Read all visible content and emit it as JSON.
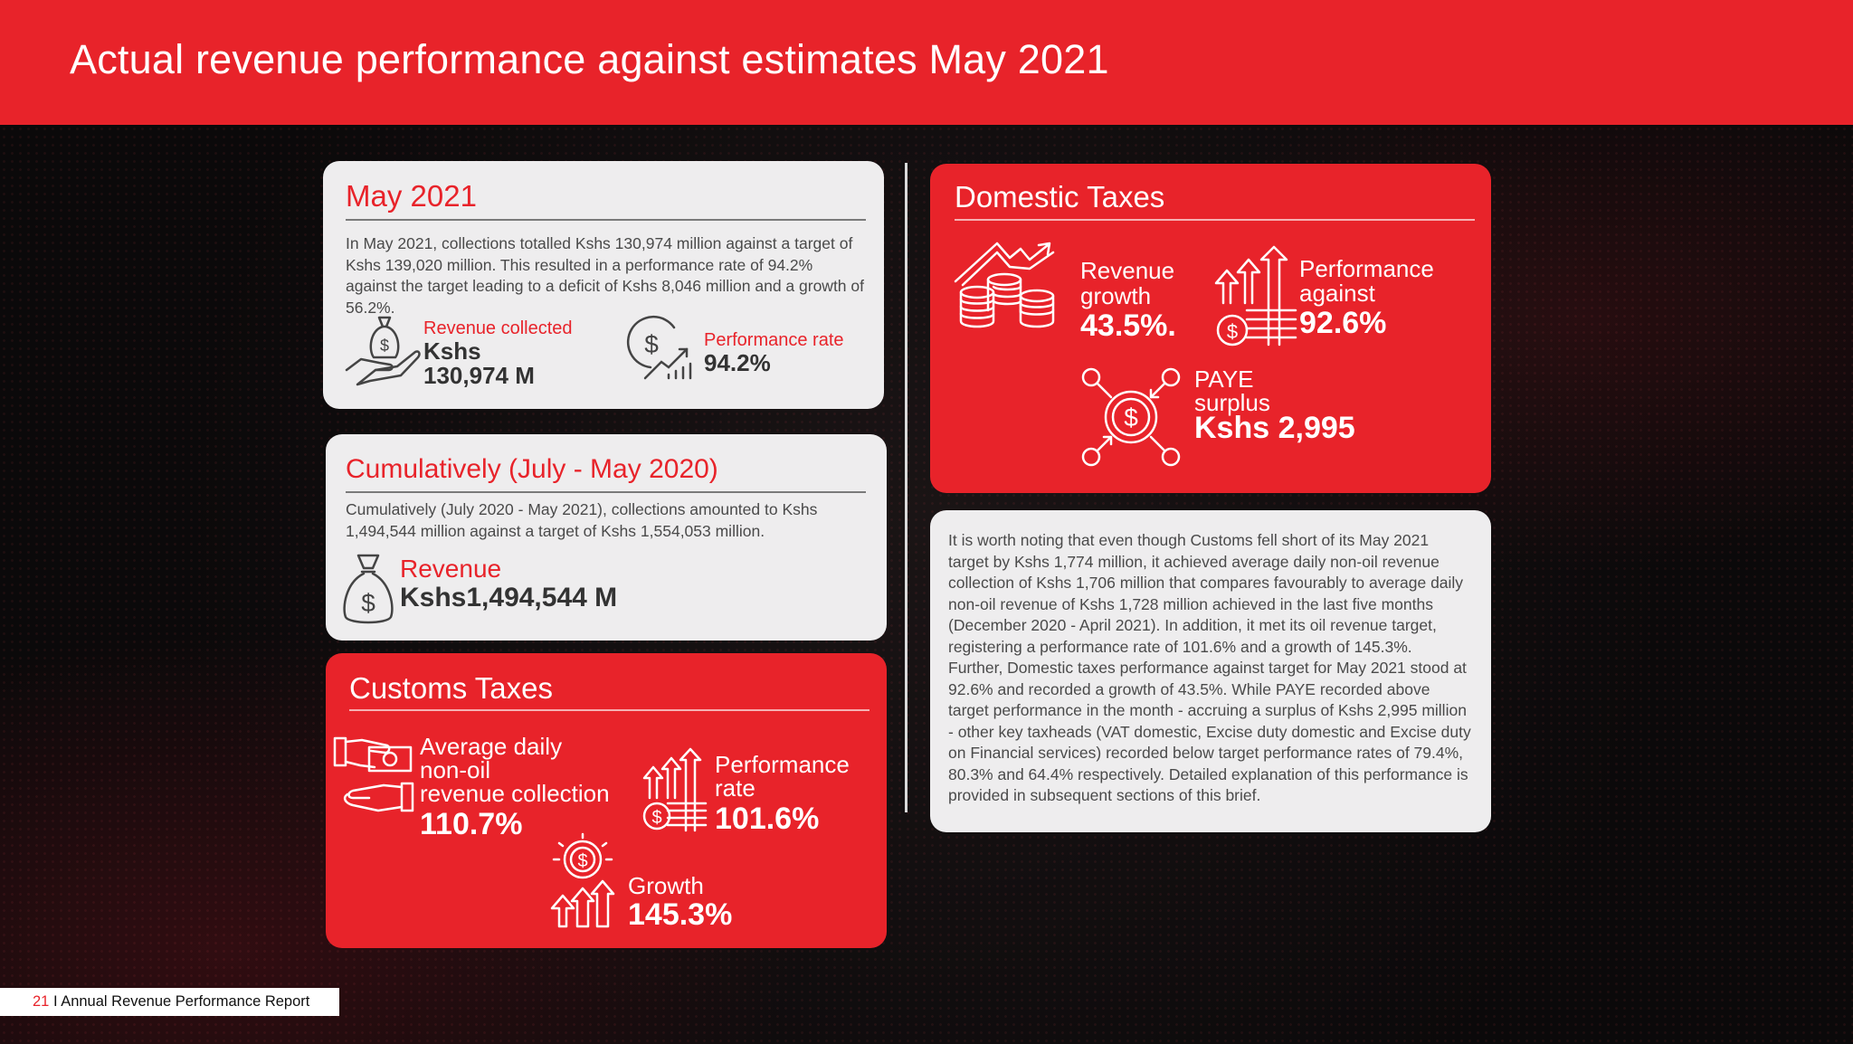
{
  "header": {
    "title": "Actual revenue performance against estimates May 2021"
  },
  "may_card": {
    "title": "May 2021",
    "text": "In May 2021, collections totalled Kshs 130,974 million against a target of Kshs 139,020 million. This resulted in a performance rate of 94.2% against the target leading to a deficit of Kshs 8,046 million and a growth of 56.2%.",
    "collected_label": "Revenue collected",
    "collected_value_1": "Kshs",
    "collected_value_2": "130,974 M",
    "rate_label": "Performance rate",
    "rate_value": "94.2%"
  },
  "cumulative_card": {
    "title": "Cumulatively (July - May 2020)",
    "text": "Cumulatively (July 2020 - May 2021), collections amounted to Kshs 1,494,544 million against a target of Kshs 1,554,053 million.",
    "revenue_label": "Revenue",
    "revenue_value": "Kshs1,494,544 M"
  },
  "customs_card": {
    "title": "Customs Taxes",
    "nonoil_label_1": "Average daily",
    "nonoil_label_2": "non-oil",
    "nonoil_label_3": "revenue collection",
    "nonoil_value": "110.7%",
    "perf_label_1": "Performance",
    "perf_label_2": "rate",
    "perf_value": "101.6%",
    "growth_label": "Growth",
    "growth_value": "145.3%"
  },
  "domestic_card": {
    "title": "Domestic Taxes",
    "growth_label_1": "Revenue",
    "growth_label_2": "growth",
    "growth_value": "43.5%.",
    "perf_label_1": "Performance",
    "perf_label_2": "against",
    "perf_value": "92.6%",
    "paye_label_1": "PAYE",
    "paye_label_2": "surplus",
    "paye_value": "Kshs 2,995"
  },
  "notes_card": {
    "para1": "It is worth noting that even though Customs fell short of its May 2021 target by Kshs 1,774 million, it achieved average daily non-oil revenue collection of Kshs 1,706 million that compares favourably to average daily non-oil revenue of Kshs 1,728 million achieved in the last five months (December 2020 - April 2021). In addition, it met its oil revenue target, registering a performance rate of 101.6% and a growth of 145.3%.",
    "para2": "Further, Domestic taxes performance against target for May 2021 stood at 92.6% and recorded a growth of 43.5%. While PAYE recorded above target performance in the month - accruing a surplus of Kshs 2,995 million - other key taxheads (VAT domestic, Excise duty domestic and Excise duty on Financial services) recorded below target performance rates of 79.4%, 80.3% and 64.4% respectively. Detailed explanation of this performance is provided in subsequent sections of this brief."
  },
  "footer": {
    "page": "21",
    "separator": " I ",
    "report": "Annual Revenue Performance Report"
  },
  "colors": {
    "brand_red": "#e8232a",
    "card_light": "#eeedee",
    "background": "#0c0a0b"
  },
  "icons": [
    "money-bag-hand-icon",
    "dollar-growth-chart-icon",
    "money-bag-icon",
    "cash-hand-icon",
    "coins-bar-chart-icon",
    "dollar-coin-growth-icon",
    "coins-trend-icon",
    "dollar-network-icon"
  ]
}
